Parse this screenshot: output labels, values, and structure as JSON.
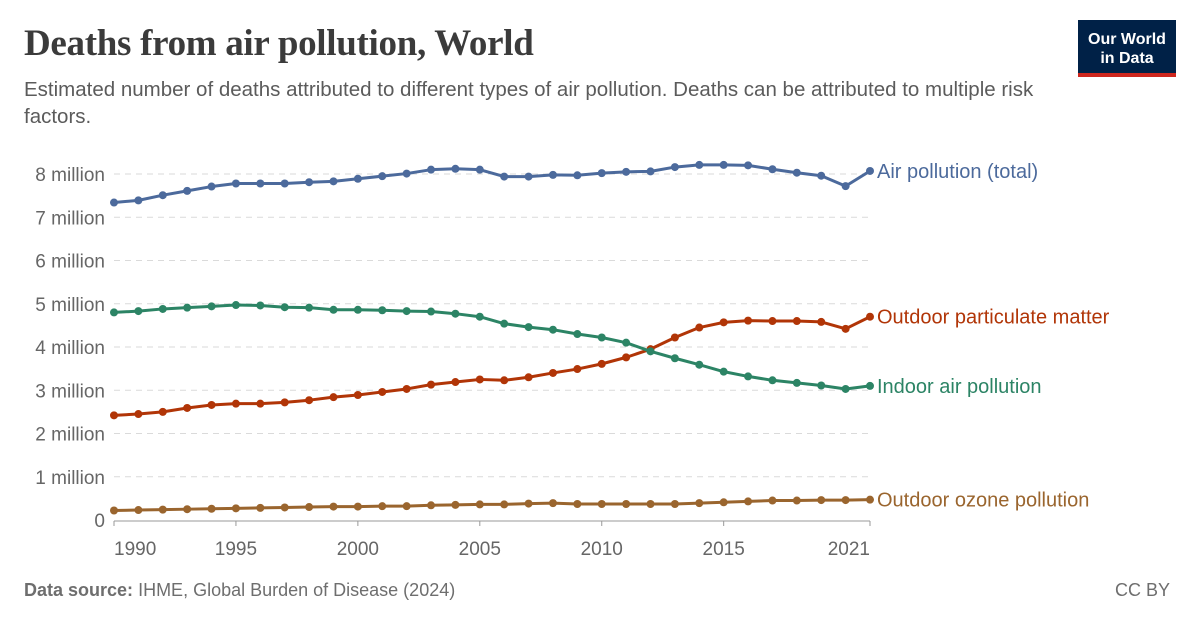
{
  "title": "Deaths from air pollution, World",
  "subtitle": "Estimated number of deaths attributed to different types of air pollution. Deaths can be attributed to multiple risk factors.",
  "logo": "Our World in Data",
  "footer": {
    "source_label": "Data source:",
    "source_text": "IHME, Global Burden of Disease (2024)",
    "license": "CC BY"
  },
  "chart_data": {
    "type": "line",
    "title": "Deaths from air pollution, World",
    "xlabel": "",
    "ylabel": "",
    "xlim": [
      1990,
      2021
    ],
    "ylim": [
      0,
      8000000
    ],
    "grid": "horizontal dashed",
    "legend": "inline labels at line ends (right)",
    "y_ticks": [
      {
        "value": 0,
        "label": "0"
      },
      {
        "value": 1000000,
        "label": "1 million"
      },
      {
        "value": 2000000,
        "label": "2 million"
      },
      {
        "value": 3000000,
        "label": "3 million"
      },
      {
        "value": 4000000,
        "label": "4 million"
      },
      {
        "value": 5000000,
        "label": "5 million"
      },
      {
        "value": 6000000,
        "label": "6 million"
      },
      {
        "value": 7000000,
        "label": "7 million"
      },
      {
        "value": 8000000,
        "label": "8 million"
      }
    ],
    "x_ticks": [
      {
        "value": 1990,
        "label": "1990"
      },
      {
        "value": 1995,
        "label": "1995"
      },
      {
        "value": 2000,
        "label": "2000"
      },
      {
        "value": 2005,
        "label": "2005"
      },
      {
        "value": 2010,
        "label": "2010"
      },
      {
        "value": 2015,
        "label": "2015"
      },
      {
        "value": 2021,
        "label": "2021"
      }
    ],
    "x": [
      1990,
      1991,
      1992,
      1993,
      1994,
      1995,
      1996,
      1997,
      1998,
      1999,
      2000,
      2001,
      2002,
      2003,
      2004,
      2005,
      2006,
      2007,
      2008,
      2009,
      2010,
      2011,
      2012,
      2013,
      2014,
      2015,
      2016,
      2017,
      2018,
      2019,
      2020,
      2021
    ],
    "series": [
      {
        "name": "Air pollution (total)",
        "color": "#4c6a9c",
        "values": [
          7340000,
          7390000,
          7510000,
          7610000,
          7710000,
          7780000,
          7780000,
          7780000,
          7810000,
          7830000,
          7890000,
          7950000,
          8010000,
          8100000,
          8120000,
          8100000,
          7940000,
          7940000,
          7980000,
          7970000,
          8020000,
          8050000,
          8060000,
          8160000,
          8210000,
          8210000,
          8200000,
          8110000,
          8030000,
          7960000,
          7720000,
          8070000
        ]
      },
      {
        "name": "Outdoor particulate matter",
        "color": "#b13507",
        "values": [
          2420000,
          2450000,
          2500000,
          2590000,
          2660000,
          2690000,
          2690000,
          2720000,
          2770000,
          2840000,
          2890000,
          2960000,
          3030000,
          3130000,
          3190000,
          3250000,
          3230000,
          3300000,
          3400000,
          3490000,
          3610000,
          3760000,
          3950000,
          4220000,
          4450000,
          4570000,
          4610000,
          4600000,
          4600000,
          4580000,
          4420000,
          4700000
        ]
      },
      {
        "name": "Indoor air pollution",
        "color": "#2c8465",
        "values": [
          4800000,
          4830000,
          4880000,
          4910000,
          4940000,
          4970000,
          4960000,
          4920000,
          4910000,
          4860000,
          4860000,
          4850000,
          4830000,
          4820000,
          4770000,
          4700000,
          4540000,
          4460000,
          4400000,
          4300000,
          4220000,
          4100000,
          3900000,
          3740000,
          3590000,
          3430000,
          3320000,
          3230000,
          3170000,
          3110000,
          3030000,
          3100000
        ]
      },
      {
        "name": "Outdoor ozone pollution",
        "color": "#9a652e",
        "values": [
          220000,
          230000,
          240000,
          250000,
          260000,
          270000,
          280000,
          290000,
          300000,
          310000,
          310000,
          320000,
          320000,
          340000,
          350000,
          360000,
          360000,
          380000,
          390000,
          370000,
          370000,
          370000,
          370000,
          370000,
          390000,
          410000,
          430000,
          450000,
          450000,
          460000,
          460000,
          470000
        ]
      }
    ]
  }
}
